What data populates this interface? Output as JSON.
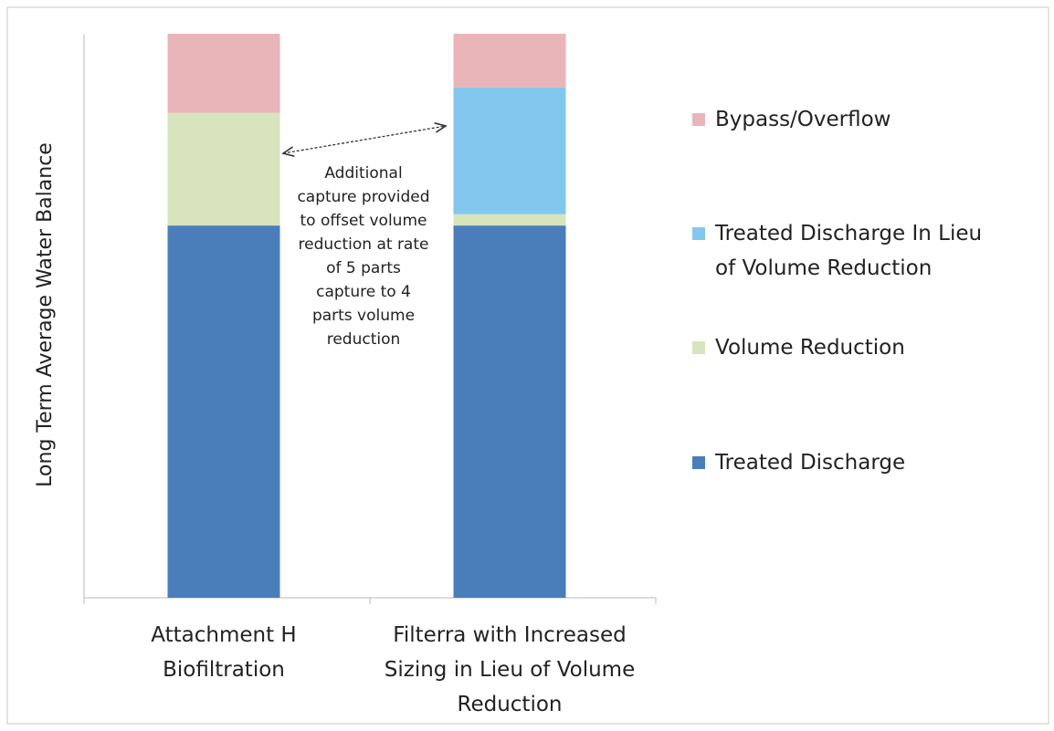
{
  "chart_data": {
    "type": "stacked_bar",
    "y_label": "Long Term Average Water Balance",
    "categories": [
      "Attachment H Biofiltration",
      "Filterra with Increased Sizing in Lieu of Volume Reduction"
    ],
    "series": [
      {
        "name": "Treated Discharge",
        "color": "#4a7ebb",
        "values": [
          66,
          66
        ]
      },
      {
        "name": "Volume Reduction",
        "color": "#d7e4bd",
        "values": [
          20,
          2
        ]
      },
      {
        "name": "Treated Discharge In Lieu of Volume Reduction",
        "color": "#84c7ee",
        "values": [
          0,
          22.5
        ]
      },
      {
        "name": "Bypass/Overflow",
        "color": "#eab5b8",
        "values": [
          14,
          9.5
        ]
      }
    ],
    "annotation": "Additional capture provided to offset volume reduction at rate of 5 parts capture to 4 parts volume reduction",
    "ylim": [
      0,
      100
    ]
  }
}
